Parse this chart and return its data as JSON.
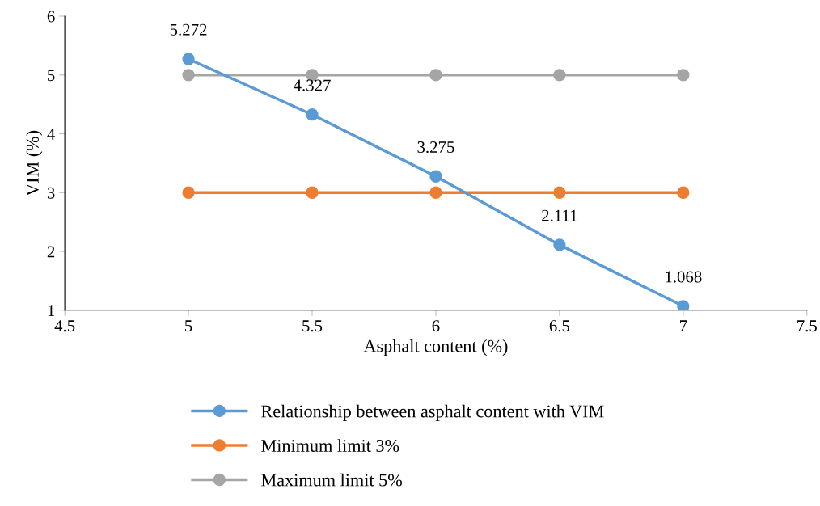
{
  "chart_data": {
    "type": "line",
    "xlabel": "Asphalt content (%)",
    "ylabel": "VIM (%)",
    "x": [
      5,
      5.5,
      6,
      6.5,
      7
    ],
    "series": [
      {
        "name": "Relationship between asphalt content with VIM",
        "color": "#5b9bd5",
        "values": [
          5.272,
          4.327,
          3.275,
          2.111,
          1.068
        ],
        "value_labels": [
          "5.272",
          "4.327",
          "3.275",
          "2.111",
          "1.068"
        ]
      },
      {
        "name": "Minimum limit 3%",
        "color": "#ed7d31",
        "values": [
          3,
          3,
          3,
          3,
          3
        ]
      },
      {
        "name": "Maximum limit 5%",
        "color": "#a5a5a5",
        "values": [
          5,
          5,
          5,
          5,
          5
        ]
      }
    ],
    "xlim": [
      4.5,
      7.5
    ],
    "xticks": [
      4.5,
      5,
      5.5,
      6,
      6.5,
      7,
      7.5
    ],
    "ylim": [
      1,
      6
    ],
    "yticks": [
      1,
      2,
      3,
      4,
      5,
      6
    ],
    "grid": false,
    "legend": "bottom",
    "marker": "circle",
    "line_style": "solid"
  }
}
